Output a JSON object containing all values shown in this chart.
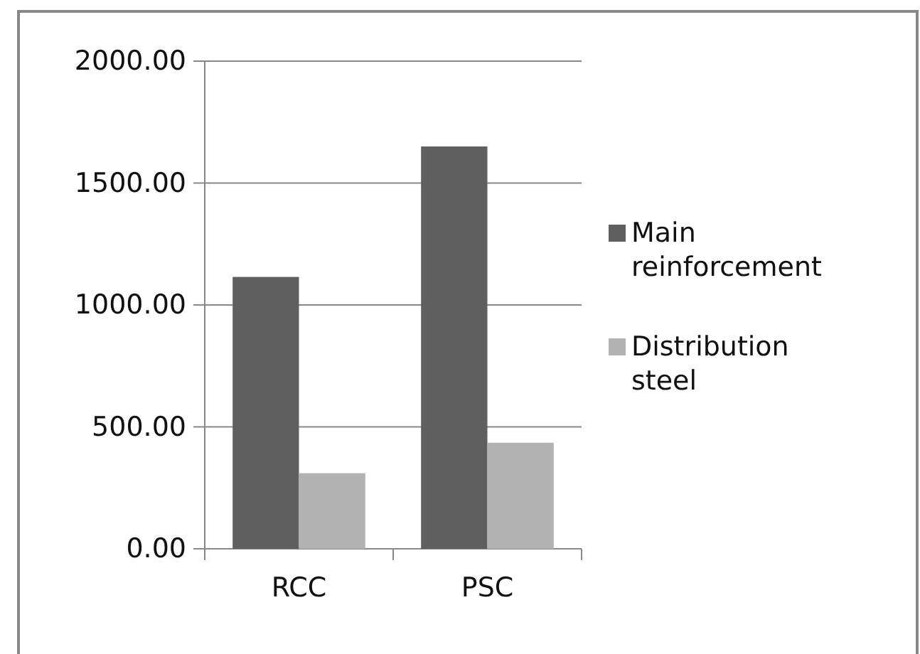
{
  "chart_data": {
    "type": "bar",
    "categories": [
      "RCC",
      "PSC"
    ],
    "series": [
      {
        "name": "Main reinforcement",
        "color": "#5f5f5f",
        "values": [
          1115,
          1650
        ]
      },
      {
        "name": "Distribution steel",
        "color": "#b2b2b2",
        "values": [
          310,
          435
        ]
      }
    ],
    "ylim": [
      0,
      2000
    ],
    "yticks": [
      {
        "value": 0,
        "label": "0.00"
      },
      {
        "value": 500,
        "label": "500.00"
      },
      {
        "value": 1000,
        "label": "1000.00"
      },
      {
        "value": 1500,
        "label": "1500.00"
      },
      {
        "value": 2000,
        "label": "2000.00"
      }
    ],
    "grid": "y",
    "legend": "right"
  }
}
